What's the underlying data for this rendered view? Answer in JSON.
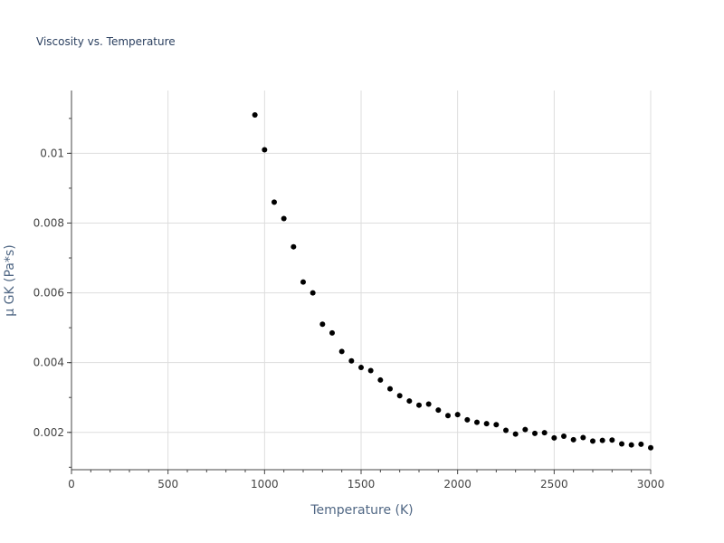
{
  "chart_data": {
    "type": "scatter",
    "title": "Viscosity vs. Temperature",
    "xlabel": "Temperature (K)",
    "ylabel": "μ GK (Pa*s)",
    "xlim": [
      0,
      3000
    ],
    "ylim": [
      0.00093,
      0.0118
    ],
    "xticks": [
      0,
      500,
      1000,
      1500,
      2000,
      2500,
      3000
    ],
    "xtick_labels": [
      "0",
      "500",
      "1000",
      "1500",
      "2000",
      "2500",
      "3000"
    ],
    "yticks": [
      0.002,
      0.004,
      0.006,
      0.008,
      0.01
    ],
    "ytick_labels": [
      "0.002",
      "0.004",
      "0.006",
      "0.008",
      "0.01"
    ],
    "grid": true,
    "marker_color": "#000000",
    "x": [
      950,
      1000,
      1050,
      1100,
      1150,
      1200,
      1250,
      1300,
      1350,
      1400,
      1450,
      1500,
      1550,
      1600,
      1650,
      1700,
      1750,
      1800,
      1850,
      1900,
      1950,
      2000,
      2050,
      2100,
      2150,
      2200,
      2250,
      2300,
      2350,
      2400,
      2450,
      2500,
      2550,
      2600,
      2650,
      2700,
      2750,
      2800,
      2850,
      2900,
      2950,
      3000
    ],
    "y": [
      0.0111,
      0.0101,
      0.0086,
      0.00813,
      0.00732,
      0.00631,
      0.006,
      0.0051,
      0.00485,
      0.00432,
      0.00405,
      0.00386,
      0.00377,
      0.0035,
      0.00325,
      0.00305,
      0.0029,
      0.00278,
      0.00281,
      0.00264,
      0.00248,
      0.00251,
      0.00236,
      0.00229,
      0.00225,
      0.00222,
      0.00206,
      0.00195,
      0.00208,
      0.00197,
      0.00199,
      0.00184,
      0.00189,
      0.00179,
      0.00185,
      0.00175,
      0.00177,
      0.00178,
      0.00167,
      0.00164,
      0.00166,
      0.00156
    ]
  }
}
